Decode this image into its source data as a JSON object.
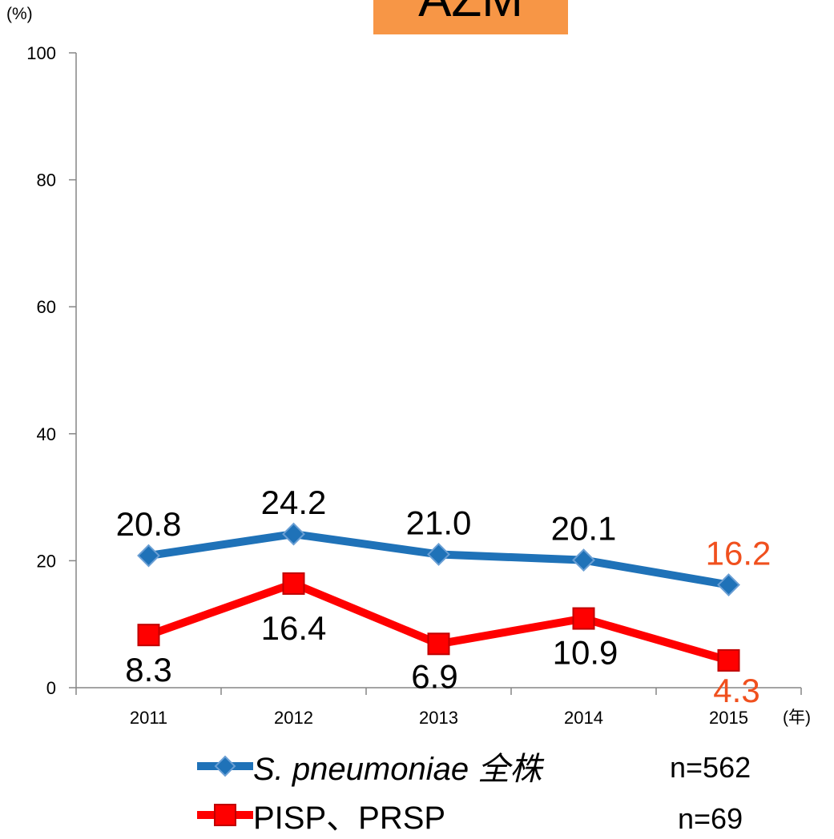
{
  "title": "AZM",
  "y_unit": "(%)",
  "x_unit": "(年)",
  "colors": {
    "title_bg": "#f79646",
    "series1": "#1f72b8",
    "series2": "#ff0000",
    "highlight_label": "#f0501e"
  },
  "chart_data": {
    "type": "line",
    "x": [
      "2011",
      "2012",
      "2013",
      "2014",
      "2015"
    ],
    "yticks": [
      "0",
      "20",
      "40",
      "60",
      "80",
      "100"
    ],
    "ylim": [
      0,
      100
    ],
    "grid": false,
    "legend_position": "bottom",
    "series": [
      {
        "name": "S. pneumoniae 全株",
        "marker": "diamond",
        "values": [
          20.8,
          24.2,
          21.0,
          20.1,
          16.2
        ],
        "labels": [
          "20.8",
          "24.2",
          "21.0",
          "20.1",
          "16.2"
        ],
        "n": "n=562"
      },
      {
        "name": "PISP、PRSP",
        "marker": "square",
        "values": [
          8.3,
          16.4,
          6.9,
          10.9,
          4.3
        ],
        "labels": [
          "8.3",
          "16.4",
          "6.9",
          "10.9",
          "4.3"
        ],
        "n": "n=69"
      }
    ]
  }
}
